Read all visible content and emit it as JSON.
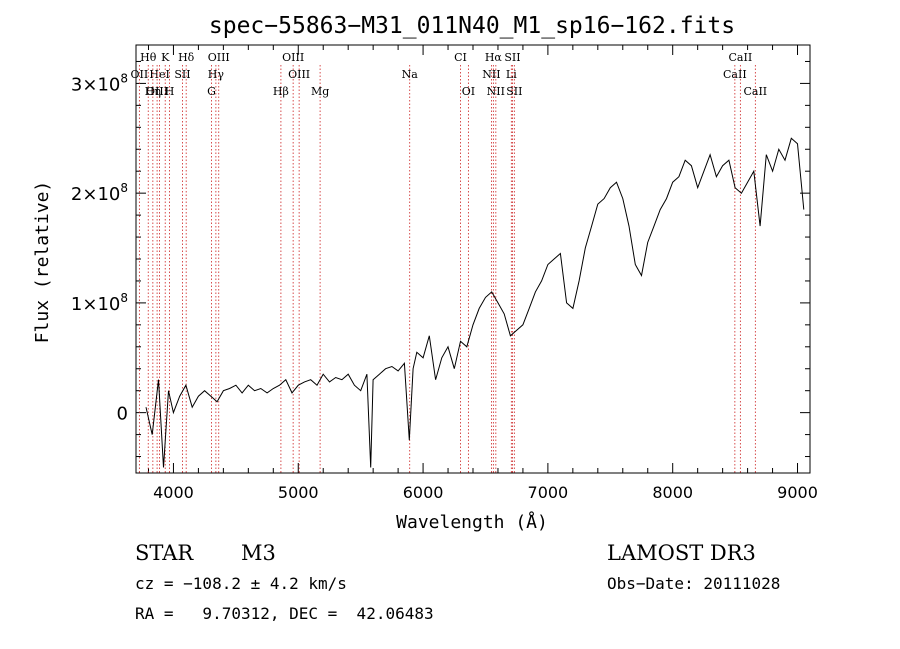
{
  "chart_data": {
    "type": "line",
    "title": "spec−55863−M31_011N40_M1_sp16−162.fits",
    "xlabel": "Wavelength (Å)",
    "ylabel": "Flux (relative)",
    "xlim": [
      3700,
      9100
    ],
    "ylim": [
      -55000000,
      335000000
    ],
    "xticks": [
      4000,
      5000,
      6000,
      7000,
      8000,
      9000
    ],
    "xtick_labels": [
      "4000",
      "5000",
      "6000",
      "7000",
      "8000",
      "9000"
    ],
    "yticks": [
      0,
      100000000,
      200000000,
      300000000
    ],
    "ytick_labels": [
      {
        "base": "0",
        "exp": ""
      },
      {
        "base": "1×10",
        "exp": "8"
      },
      {
        "base": "2×10",
        "exp": "8"
      },
      {
        "base": "3×10",
        "exp": "8"
      }
    ],
    "series": [
      {
        "name": "spectrum",
        "x": [
          3780,
          3830,
          3880,
          3920,
          3960,
          4000,
          4050,
          4100,
          4150,
          4200,
          4250,
          4300,
          4350,
          4400,
          4450,
          4500,
          4550,
          4600,
          4650,
          4700,
          4750,
          4800,
          4850,
          4900,
          4950,
          5000,
          5050,
          5100,
          5150,
          5200,
          5250,
          5300,
          5350,
          5400,
          5450,
          5500,
          5550,
          5580,
          5600,
          5650,
          5700,
          5750,
          5800,
          5850,
          5890,
          5920,
          5950,
          6000,
          6050,
          6100,
          6150,
          6200,
          6250,
          6300,
          6350,
          6400,
          6450,
          6500,
          6550,
          6600,
          6650,
          6700,
          6750,
          6800,
          6850,
          6900,
          6950,
          7000,
          7050,
          7100,
          7150,
          7200,
          7250,
          7300,
          7350,
          7400,
          7450,
          7500,
          7550,
          7600,
          7650,
          7700,
          7750,
          7800,
          7850,
          7900,
          7950,
          8000,
          8050,
          8100,
          8150,
          8200,
          8250,
          8300,
          8350,
          8400,
          8450,
          8500,
          8550,
          8600,
          8650,
          8700,
          8750,
          8800,
          8850,
          8900,
          8950,
          9000,
          9050
        ],
        "y": [
          5000000,
          -20000000,
          30000000,
          -50000000,
          20000000,
          0,
          15000000,
          25000000,
          5000000,
          15000000,
          20000000,
          15000000,
          10000000,
          20000000,
          22000000,
          25000000,
          18000000,
          25000000,
          20000000,
          22000000,
          18000000,
          22000000,
          25000000,
          30000000,
          18000000,
          25000000,
          28000000,
          30000000,
          25000000,
          35000000,
          28000000,
          32000000,
          30000000,
          35000000,
          25000000,
          20000000,
          35000000,
          -50000000,
          30000000,
          35000000,
          40000000,
          42000000,
          38000000,
          45000000,
          -25000000,
          40000000,
          55000000,
          50000000,
          70000000,
          30000000,
          50000000,
          60000000,
          40000000,
          65000000,
          60000000,
          80000000,
          95000000,
          105000000,
          110000000,
          100000000,
          90000000,
          70000000,
          75000000,
          80000000,
          95000000,
          110000000,
          120000000,
          135000000,
          140000000,
          145000000,
          100000000,
          95000000,
          120000000,
          150000000,
          170000000,
          190000000,
          195000000,
          205000000,
          210000000,
          195000000,
          170000000,
          135000000,
          125000000,
          155000000,
          170000000,
          185000000,
          195000000,
          210000000,
          215000000,
          230000000,
          225000000,
          205000000,
          220000000,
          235000000,
          215000000,
          225000000,
          230000000,
          205000000,
          200000000,
          210000000,
          220000000,
          170000000,
          235000000,
          220000000,
          240000000,
          230000000,
          250000000,
          245000000,
          185000000
        ]
      }
    ],
    "lines": [
      {
        "label": "Hθ",
        "x": 3798,
        "row": 0
      },
      {
        "label": "K",
        "x": 3934,
        "row": 0
      },
      {
        "label": "Hδ",
        "x": 4102,
        "row": 0
      },
      {
        "label": "OIII",
        "x": 4363,
        "row": 0
      },
      {
        "label": "OIII",
        "x": 4959,
        "row": 0
      },
      {
        "label": "CI",
        "x": 6300,
        "row": 0
      },
      {
        "label": "Hα",
        "x": 6563,
        "row": 0
      },
      {
        "label": "SII",
        "x": 6716,
        "row": 0
      },
      {
        "label": "CaII",
        "x": 8542,
        "row": 0
      },
      {
        "label": "OII",
        "x": 3727,
        "row": 1
      },
      {
        "label": "HeI",
        "x": 3889,
        "row": 1
      },
      {
        "label": "SII",
        "x": 4072,
        "row": 1
      },
      {
        "label": "Hγ",
        "x": 4340,
        "row": 1
      },
      {
        "label": "OIII",
        "x": 5007,
        "row": 1
      },
      {
        "label": "Na",
        "x": 5893,
        "row": 1
      },
      {
        "label": "NII",
        "x": 6548,
        "row": 1
      },
      {
        "label": "Li",
        "x": 6707,
        "row": 1
      },
      {
        "label": "CaII",
        "x": 8498,
        "row": 1
      },
      {
        "label": "OIII",
        "x": 3869,
        "row": 2
      },
      {
        "label": "Hη",
        "x": 3835,
        "row": 2
      },
      {
        "label": "H",
        "x": 3969,
        "row": 2
      },
      {
        "label": "G",
        "x": 4305,
        "row": 2
      },
      {
        "label": "Hβ",
        "x": 4861,
        "row": 2
      },
      {
        "label": "Mg",
        "x": 5175,
        "row": 2
      },
      {
        "label": "OI",
        "x": 6363,
        "row": 2
      },
      {
        "label": "NII",
        "x": 6583,
        "row": 2
      },
      {
        "label": "SII",
        "x": 6731,
        "row": 2
      },
      {
        "label": "CaII",
        "x": 8662,
        "row": 2
      }
    ],
    "line_color": "#cc2222",
    "spectrum_color": "#000000"
  },
  "info": {
    "object_class": "STAR",
    "subclass": "M3",
    "survey": "LAMOST DR3",
    "redshift": "cz = −108.2 ± 4.2 km/s",
    "obs_date": "Obs−Date: 20111028",
    "coords": "RA =   9.70312, DEC =  42.06483"
  }
}
